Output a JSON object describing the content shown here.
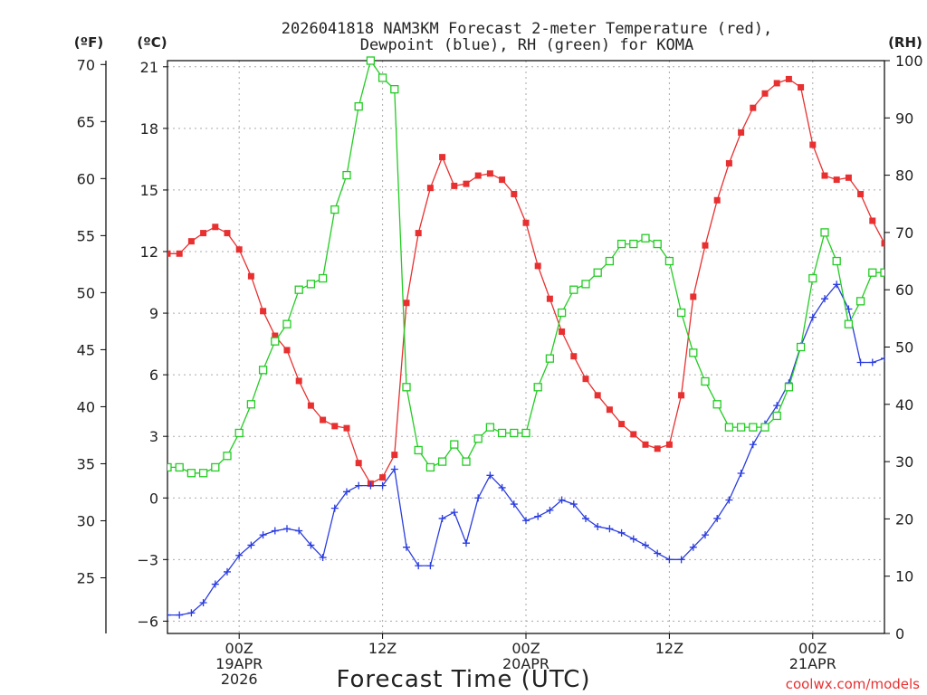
{
  "chart_data": {
    "type": "line",
    "title_line1": "2026041818 NAM3KM Forecast 2-meter Temperature (red),",
    "title_line2": "Dewpoint (blue), RH (green) for KOMA",
    "xlabel": "Forecast Time (UTC)",
    "watermark": "coolwx.com/models",
    "unit_labels": {
      "fahrenheit": "(ºF)",
      "celsius": "(ºC)",
      "rh": "(RH)"
    },
    "x_hours_range": [
      -6,
      54
    ],
    "x_ticks": [
      {
        "hour": 0,
        "labels": [
          "00Z",
          "19APR",
          "2026"
        ]
      },
      {
        "hour": 12,
        "labels": [
          "12Z"
        ]
      },
      {
        "hour": 24,
        "labels": [
          "00Z",
          "20APR"
        ]
      },
      {
        "hour": 36,
        "labels": [
          "12Z"
        ]
      },
      {
        "hour": 48,
        "labels": [
          "00Z",
          "21APR"
        ]
      }
    ],
    "celsius_axis": {
      "range": [
        -6.6,
        21.3
      ],
      "ticks": [
        -6,
        -3,
        0,
        3,
        6,
        9,
        12,
        15,
        18,
        21
      ],
      "tick_labels": [
        "−6",
        "−3",
        "0",
        "3",
        "6",
        "9",
        "12",
        "15",
        "18",
        "21"
      ]
    },
    "fahrenheit_axis": {
      "ticks": [
        25,
        30,
        35,
        40,
        45,
        50,
        55,
        60,
        65,
        70
      ],
      "tick_labels": [
        "25",
        "30",
        "35",
        "40",
        "45",
        "50",
        "55",
        "60",
        "65",
        "70"
      ]
    },
    "rh_axis": {
      "range": [
        0,
        100
      ],
      "ticks": [
        0,
        10,
        20,
        30,
        40,
        50,
        60,
        70,
        80,
        90,
        100
      ],
      "tick_labels": [
        "0",
        "10",
        "20",
        "30",
        "40",
        "50",
        "60",
        "70",
        "80",
        "90",
        "100"
      ]
    },
    "x_hours": [
      -6,
      -5,
      -4,
      -3,
      -2,
      -1,
      0,
      1,
      2,
      3,
      4,
      5,
      6,
      7,
      8,
      9,
      10,
      11,
      12,
      13,
      14,
      15,
      16,
      17,
      18,
      19,
      20,
      21,
      22,
      23,
      24,
      25,
      26,
      27,
      28,
      29,
      30,
      31,
      32,
      33,
      34,
      35,
      36,
      37,
      38,
      39,
      40,
      41,
      42,
      43,
      44,
      45,
      46,
      47,
      48,
      49,
      50,
      51,
      52,
      53,
      54
    ],
    "series": [
      {
        "name": "2-meter Temperature",
        "unit": "°C",
        "color": "#e83030",
        "marker": "filled-square",
        "values": [
          11.9,
          11.9,
          12.5,
          12.9,
          13.2,
          12.9,
          12.1,
          10.8,
          9.1,
          7.9,
          7.2,
          5.7,
          4.5,
          3.8,
          3.5,
          3.4,
          1.7,
          0.7,
          1.0,
          2.1,
          9.5,
          12.9,
          15.1,
          16.6,
          15.2,
          15.3,
          15.7,
          15.8,
          15.5,
          14.8,
          13.4,
          11.3,
          9.7,
          8.1,
          6.9,
          5.8,
          5.0,
          4.3,
          3.6,
          3.1,
          2.6,
          2.4,
          2.6,
          5.0,
          9.8,
          12.3,
          14.5,
          16.3,
          17.8,
          19.0,
          19.7,
          20.2,
          20.4,
          20.0,
          17.2,
          15.7,
          15.5,
          15.6,
          14.8,
          13.5,
          12.4
        ]
      },
      {
        "name": "Dewpoint",
        "unit": "°C",
        "color": "#2a3ce0",
        "marker": "plus",
        "values": [
          -5.7,
          -5.7,
          -5.6,
          -5.1,
          -4.2,
          -3.6,
          -2.8,
          -2.3,
          -1.8,
          -1.6,
          -1.5,
          -1.6,
          -2.3,
          -2.9,
          -0.5,
          0.3,
          0.6,
          0.6,
          0.6,
          1.4,
          -2.4,
          -3.3,
          -3.3,
          -1.0,
          -0.7,
          -2.2,
          0.0,
          1.1,
          0.5,
          -0.3,
          -1.1,
          -0.9,
          -0.6,
          -0.1,
          -0.3,
          -1.0,
          -1.4,
          -1.5,
          -1.7,
          -2.0,
          -2.3,
          -2.7,
          -3.0,
          -3.0,
          -2.4,
          -1.8,
          -1.0,
          -0.1,
          1.2,
          2.6,
          3.6,
          4.5,
          5.6,
          7.4,
          8.8,
          9.7,
          10.4,
          9.2,
          6.6,
          6.6,
          6.8
        ]
      },
      {
        "name": "RH",
        "unit": "%",
        "color": "#22cc22",
        "marker": "open-square",
        "values": [
          29,
          29,
          28,
          28,
          29,
          31,
          35,
          40,
          46,
          51,
          54,
          60,
          61,
          62,
          74,
          80,
          92,
          100,
          97,
          95,
          43,
          32,
          29,
          30,
          33,
          30,
          34,
          36,
          35,
          35,
          35,
          43,
          48,
          56,
          60,
          61,
          63,
          65,
          68,
          68,
          69,
          68,
          65,
          56,
          49,
          44,
          40,
          36,
          36,
          36,
          36,
          38,
          43,
          50,
          62,
          70,
          65,
          54,
          58,
          63,
          63
        ]
      }
    ]
  }
}
